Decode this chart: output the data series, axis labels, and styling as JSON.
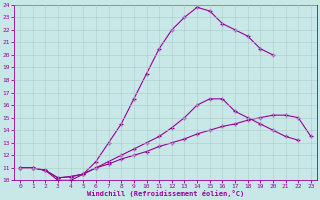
{
  "xlabel": "Windchill (Refroidissement éolien,°C)",
  "bg_color": "#c8e8e8",
  "line_color": "#990099",
  "grid_color": "#b0c8c8",
  "xlim": [
    -0.5,
    23.5
  ],
  "ylim": [
    10,
    24
  ],
  "xticks": [
    0,
    1,
    2,
    3,
    4,
    5,
    6,
    7,
    8,
    9,
    10,
    11,
    12,
    13,
    14,
    15,
    16,
    17,
    18,
    19,
    20,
    21,
    22,
    23
  ],
  "yticks": [
    10,
    11,
    12,
    13,
    14,
    15,
    16,
    17,
    18,
    19,
    20,
    21,
    22,
    23,
    24
  ],
  "curve_upper_x": [
    0,
    1,
    2,
    3,
    4,
    5,
    6,
    7,
    8,
    9,
    10,
    11,
    12,
    13,
    14,
    15,
    16,
    17,
    18,
    19,
    20
  ],
  "curve_upper_y": [
    11,
    11,
    10.8,
    10.0,
    10.0,
    10.5,
    11.5,
    13.0,
    14.5,
    16.5,
    18.5,
    20.5,
    22.0,
    23.0,
    23.8,
    23.5,
    22.5,
    22.0,
    21.5,
    20.5,
    20.0
  ],
  "curve_mid_x": [
    0,
    1,
    2,
    3,
    4,
    5,
    6,
    7,
    8,
    9,
    10,
    11,
    12,
    13,
    14,
    15,
    16,
    17,
    18,
    19,
    20,
    21,
    22
  ],
  "curve_mid_y": [
    11,
    11,
    10.8,
    10.2,
    10.3,
    10.5,
    11.0,
    11.5,
    12.0,
    12.5,
    13.0,
    13.5,
    14.2,
    15.0,
    16.0,
    16.5,
    16.5,
    15.5,
    15.0,
    14.5,
    14.0,
    13.5,
    13.2
  ],
  "curve_low_x": [
    0,
    1,
    2,
    3,
    4,
    5,
    6,
    7,
    8,
    9,
    10,
    11,
    12,
    13,
    14,
    15,
    16,
    17,
    18,
    19,
    20,
    21,
    22,
    23
  ],
  "curve_low_y": [
    11,
    11,
    10.8,
    10.2,
    10.3,
    10.5,
    11.0,
    11.3,
    11.7,
    12.0,
    12.3,
    12.7,
    13.0,
    13.3,
    13.7,
    14.0,
    14.3,
    14.5,
    14.8,
    15.0,
    15.2,
    15.2,
    15.0,
    13.5
  ]
}
